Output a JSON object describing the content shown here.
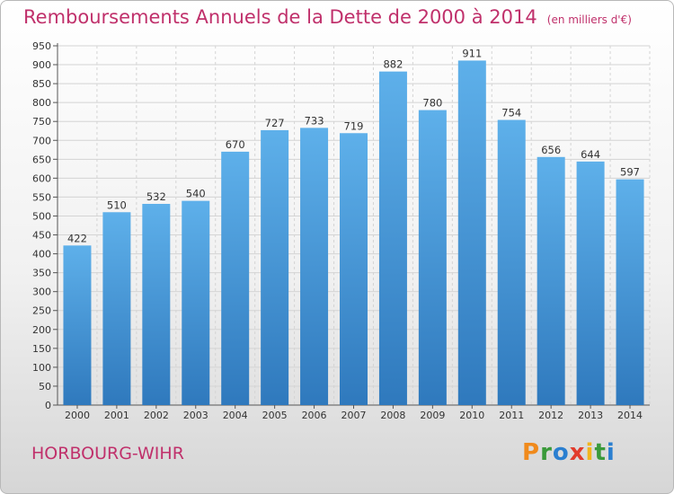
{
  "title": "Remboursements Annuels de la Dette de 2000 à 2014",
  "unit_note": "(en milliers d'€)",
  "city": "HORBOURG-WIHR",
  "logo": {
    "text": "Proxiti",
    "letters": [
      {
        "char": "P",
        "color": "#f08a1c"
      },
      {
        "char": "r",
        "color": "#3a9a3a"
      },
      {
        "char": "o",
        "color": "#2a7fd0"
      },
      {
        "char": "x",
        "color": "#e23c2c"
      },
      {
        "char": "i",
        "color": "#f2b51c"
      },
      {
        "char": "t",
        "color": "#3a9a3a"
      },
      {
        "char": "i",
        "color": "#2a7fd0"
      }
    ]
  },
  "colors": {
    "title": "#c0306b",
    "bar_top": "#5eb0ea",
    "bar_bottom": "#2f79bd",
    "grid": "#d4d4d4"
  },
  "chart_data": {
    "type": "bar",
    "title": "Remboursements Annuels de la Dette de 2000 à 2014",
    "categories": [
      "2000",
      "2001",
      "2002",
      "2003",
      "2004",
      "2005",
      "2006",
      "2007",
      "2008",
      "2009",
      "2010",
      "2011",
      "2012",
      "2013",
      "2014"
    ],
    "values": [
      422,
      510,
      532,
      540,
      670,
      727,
      733,
      719,
      882,
      780,
      911,
      754,
      656,
      644,
      597
    ],
    "ylim": [
      0,
      950
    ],
    "yticks": [
      0,
      50,
      100,
      150,
      200,
      250,
      300,
      350,
      400,
      450,
      500,
      550,
      600,
      650,
      700,
      750,
      800,
      850,
      900,
      950
    ],
    "grid": true,
    "data_labels": true
  }
}
